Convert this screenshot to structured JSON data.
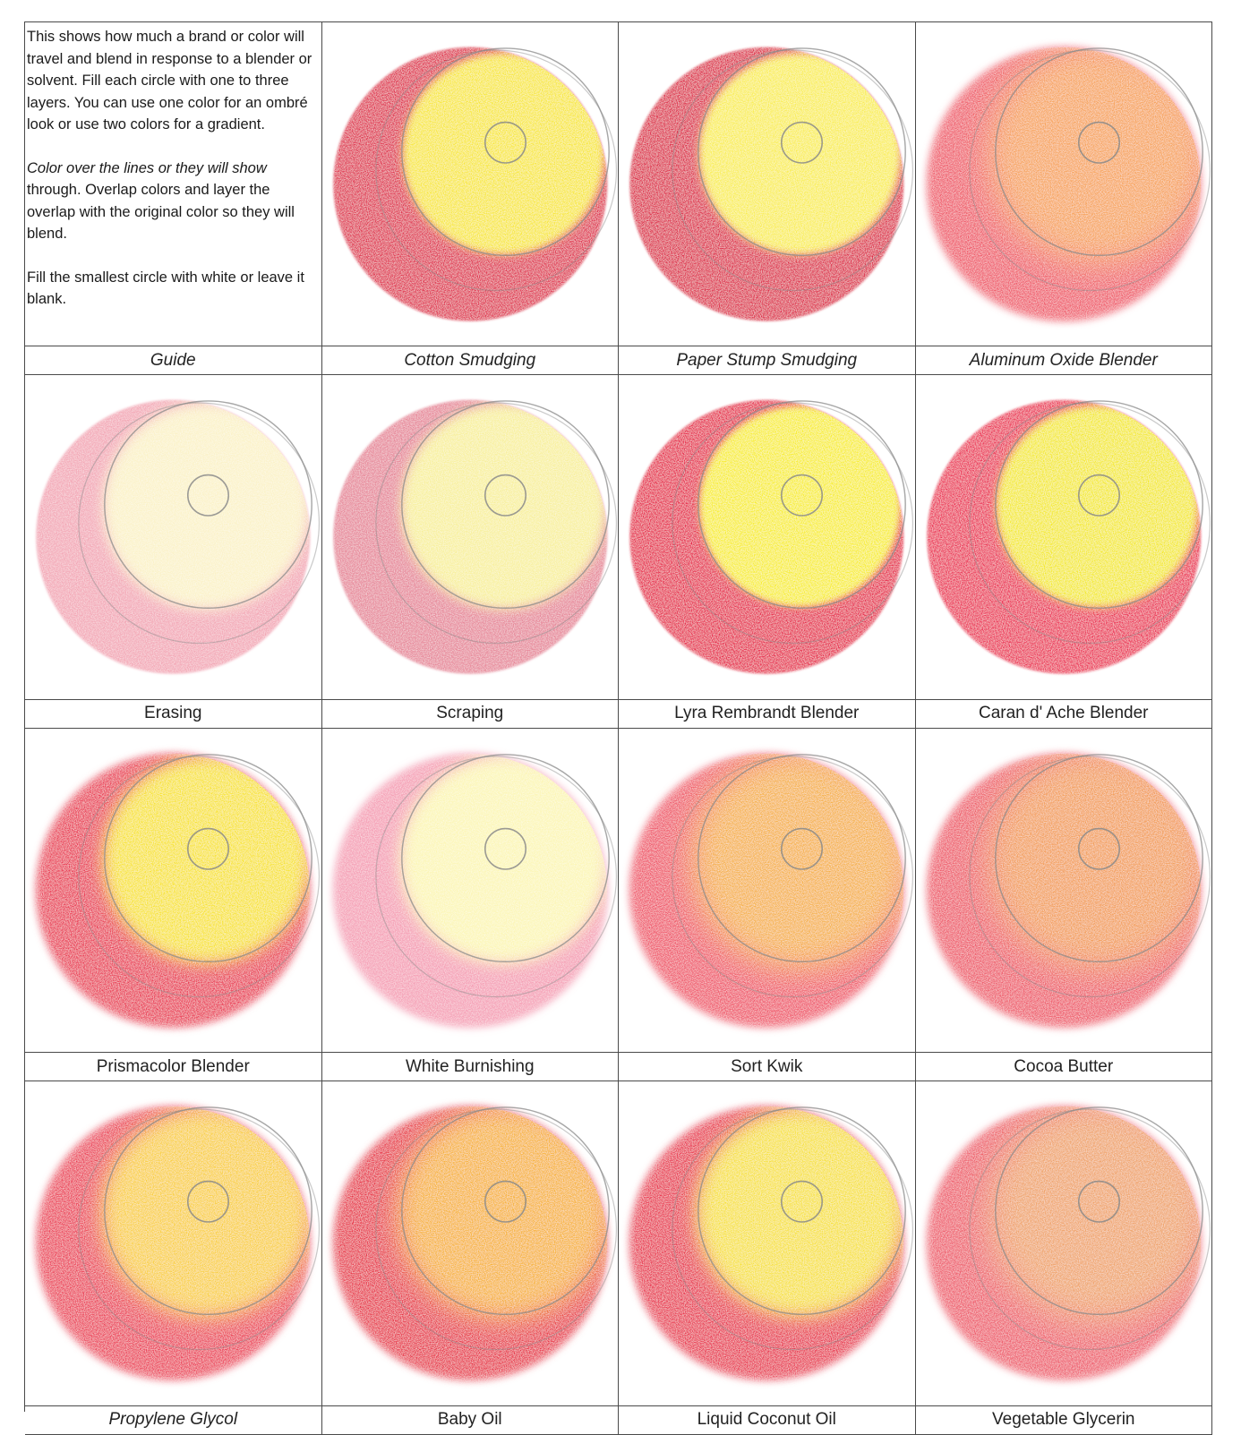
{
  "guide": {
    "paragraph1": "This shows how much a brand or color will travel and blend in response to a blender or solvent. Fill each circle with one to three layers. You can use one color for an ombré look or use two colors for a gradient.",
    "paragraph2_italic": "Color over the lines or they will show",
    "paragraph2_rest": " through. Overlap colors and layer the overlap with the original color so they will blend.",
    "paragraph3": "Fill the smallest circle with white or leave it blank.",
    "label": "Guide"
  },
  "swatches": [
    {
      "label": "Cotton Smudging",
      "italic": true,
      "style": "crisp",
      "blend": 0.15,
      "outer_color": "#e0304f",
      "inner_color": "#f8e83a",
      "pale": false
    },
    {
      "label": "Paper Stump Smudging",
      "italic": true,
      "style": "crisp",
      "blend": 0.15,
      "outer_color": "#de2c48",
      "inner_color": "#f9ee52",
      "pale": false
    },
    {
      "label": "Aluminum Oxide Blender",
      "italic": true,
      "style": "soft",
      "blend": 0.9,
      "outer_color": "#f05a6a",
      "inner_color": "#f7a45a",
      "pale": false
    },
    {
      "label": "Erasing",
      "italic": false,
      "style": "crisp",
      "blend": 0.3,
      "outer_color": "#f3a7b6",
      "inner_color": "#fbf2c8",
      "pale": true
    },
    {
      "label": "Scraping",
      "italic": false,
      "style": "crisp",
      "blend": 0.25,
      "outer_color": "#e7889a",
      "inner_color": "#f8f09c",
      "pale": true
    },
    {
      "label": "Lyra Rembrandt Blender",
      "italic": false,
      "style": "crisp",
      "blend": 0.1,
      "outer_color": "#e72c4e",
      "inner_color": "#f8ee2e",
      "pale": false
    },
    {
      "label": "Caran d' Ache Blender",
      "italic": false,
      "style": "crisp",
      "blend": 0.15,
      "outer_color": "#ec3056",
      "inner_color": "#f4ea2a",
      "pale": false
    },
    {
      "label": "Prismacolor Blender",
      "italic": false,
      "style": "soft",
      "blend": 0.4,
      "outer_color": "#ea3a55",
      "inner_color": "#f8e42e",
      "pale": false
    },
    {
      "label": "White Burnishing",
      "italic": false,
      "style": "soft",
      "blend": 0.35,
      "outer_color": "#f59fb5",
      "inner_color": "#fcf6b6",
      "pale": true
    },
    {
      "label": "Sort Kwik",
      "italic": false,
      "style": "soft",
      "blend": 0.85,
      "outer_color": "#f0566a",
      "inner_color": "#f6b24a",
      "pale": false
    },
    {
      "label": "Cocoa Butter",
      "italic": false,
      "style": "soft",
      "blend": 0.9,
      "outer_color": "#ef5a6a",
      "inner_color": "#f39f58",
      "pale": false
    },
    {
      "label": "Propylene Glycol",
      "italic": true,
      "style": "soft",
      "blend": 0.55,
      "outer_color": "#ec4058",
      "inner_color": "#f9d040",
      "pale": false
    },
    {
      "label": "Baby Oil",
      "italic": false,
      "style": "soft",
      "blend": 0.7,
      "outer_color": "#e83448",
      "inner_color": "#f7b438",
      "pale": false
    },
    {
      "label": "Liquid Coconut Oil",
      "italic": false,
      "style": "soft",
      "blend": 0.5,
      "outer_color": "#e93650",
      "inner_color": "#f7e23c",
      "pale": false
    },
    {
      "label": "Vegetable Glycerin",
      "italic": false,
      "style": "soft",
      "blend": 0.95,
      "outer_color": "#ef5c6c",
      "inner_color": "#f0a46a",
      "pale": false
    }
  ],
  "colors": {
    "guide_line": "#8a8a8a",
    "border": "#4a4a4a",
    "paper": "#ffffff"
  }
}
